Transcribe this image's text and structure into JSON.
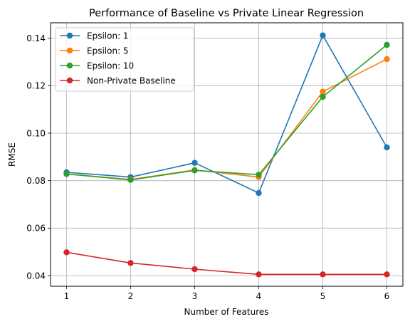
{
  "chart_data": {
    "type": "line",
    "title": "Performance of Baseline vs Private Linear Regression",
    "xlabel": "Number of Features",
    "ylabel": "RMSE",
    "x": [
      1,
      2,
      3,
      4,
      5,
      6
    ],
    "xlim": [
      0.75,
      6.25
    ],
    "ylim": [
      0.0355,
      0.1465
    ],
    "xticks": [
      "1",
      "2",
      "3",
      "4",
      "5",
      "6"
    ],
    "yticks": [
      0.04,
      0.06,
      0.08,
      0.1,
      0.12,
      0.14
    ],
    "ytick_labels": [
      "0.04",
      "0.06",
      "0.08",
      "0.10",
      "0.12",
      "0.14"
    ],
    "grid": true,
    "legend_position": "top-left",
    "series": [
      {
        "name": "Epsilon: 1",
        "color": "#1f77b4",
        "values": [
          0.0835,
          0.0815,
          0.0875,
          0.0748,
          0.1412,
          0.094
        ]
      },
      {
        "name": "Epsilon: 5",
        "color": "#ff7f0e",
        "values": [
          0.0828,
          0.0805,
          0.0845,
          0.0815,
          0.1175,
          0.1312
        ]
      },
      {
        "name": "Epsilon: 10",
        "color": "#2ca02c",
        "values": [
          0.0828,
          0.0803,
          0.0843,
          0.0825,
          0.1153,
          0.1372
        ]
      },
      {
        "name": "Non-Private Baseline",
        "color": "#d62728",
        "values": [
          0.0498,
          0.0453,
          0.0427,
          0.0405,
          0.0405,
          0.0405
        ]
      }
    ]
  }
}
